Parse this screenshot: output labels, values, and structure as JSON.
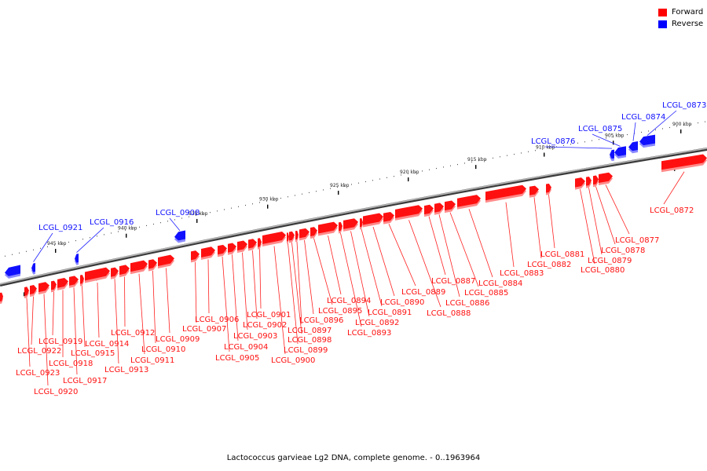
{
  "legend": {
    "forward_label": "Forward",
    "reverse_label": "Reverse",
    "forward_color": "#ff0000",
    "reverse_color": "#0000ff"
  },
  "footer": "Lactococcus garvieae Lg2 DNA, complete genome. - 0..1963964",
  "axis_ticks": [
    "945 kbp",
    "940 kbp",
    "935 kbp",
    "930 kbp",
    "925 kbp",
    "920 kbp",
    "915 kbp",
    "910 kbp",
    "905 kbp",
    "900 kbp"
  ],
  "genes": [
    {
      "name": "LCGL_0873",
      "strand": "reverse"
    },
    {
      "name": "LCGL_0874",
      "strand": "reverse"
    },
    {
      "name": "LCGL_0875",
      "strand": "reverse"
    },
    {
      "name": "LCGL_0876",
      "strand": "reverse"
    },
    {
      "name": "LCGL_0908",
      "strand": "reverse"
    },
    {
      "name": "LCGL_0916",
      "strand": "reverse"
    },
    {
      "name": "LCGL_0921",
      "strand": "reverse"
    },
    {
      "name": "LCGL_0872",
      "strand": "forward"
    },
    {
      "name": "LCGL_0877",
      "strand": "forward"
    },
    {
      "name": "LCGL_0878",
      "strand": "forward"
    },
    {
      "name": "LCGL_0879",
      "strand": "forward"
    },
    {
      "name": "LCGL_0880",
      "strand": "forward"
    },
    {
      "name": "LCGL_0881",
      "strand": "forward"
    },
    {
      "name": "LCGL_0882",
      "strand": "forward"
    },
    {
      "name": "LCGL_0883",
      "strand": "forward"
    },
    {
      "name": "LCGL_0884",
      "strand": "forward"
    },
    {
      "name": "LCGL_0885",
      "strand": "forward"
    },
    {
      "name": "LCGL_0886",
      "strand": "forward"
    },
    {
      "name": "LCGL_0887",
      "strand": "forward"
    },
    {
      "name": "LCGL_0888",
      "strand": "forward"
    },
    {
      "name": "LCGL_0889",
      "strand": "forward"
    },
    {
      "name": "LCGL_0890",
      "strand": "forward"
    },
    {
      "name": "LCGL_0891",
      "strand": "forward"
    },
    {
      "name": "LCGL_0892",
      "strand": "forward"
    },
    {
      "name": "LCGL_0893",
      "strand": "forward"
    },
    {
      "name": "LCGL_0894",
      "strand": "forward"
    },
    {
      "name": "LCGL_0895",
      "strand": "forward"
    },
    {
      "name": "LCGL_0896",
      "strand": "forward"
    },
    {
      "name": "LCGL_0897",
      "strand": "forward"
    },
    {
      "name": "LCGL_0898",
      "strand": "forward"
    },
    {
      "name": "LCGL_0899",
      "strand": "forward"
    },
    {
      "name": "LCGL_0900",
      "strand": "forward"
    },
    {
      "name": "LCGL_0901",
      "strand": "forward"
    },
    {
      "name": "LCGL_0902",
      "strand": "forward"
    },
    {
      "name": "LCGL_0903",
      "strand": "forward"
    },
    {
      "name": "LCGL_0904",
      "strand": "forward"
    },
    {
      "name": "LCGL_0905",
      "strand": "forward"
    },
    {
      "name": "LCGL_0906",
      "strand": "forward"
    },
    {
      "name": "LCGL_0907",
      "strand": "forward"
    },
    {
      "name": "LCGL_0909",
      "strand": "forward"
    },
    {
      "name": "LCGL_0910",
      "strand": "forward"
    },
    {
      "name": "LCGL_0911",
      "strand": "forward"
    },
    {
      "name": "LCGL_0912",
      "strand": "forward"
    },
    {
      "name": "LCGL_0913",
      "strand": "forward"
    },
    {
      "name": "LCGL_0914",
      "strand": "forward"
    },
    {
      "name": "LCGL_0915",
      "strand": "forward"
    },
    {
      "name": "LCGL_0917",
      "strand": "forward"
    },
    {
      "name": "LCGL_0918",
      "strand": "forward"
    },
    {
      "name": "LCGL_0919",
      "strand": "forward"
    },
    {
      "name": "LCGL_0920",
      "strand": "forward"
    },
    {
      "name": "LCGL_0922",
      "strand": "forward"
    },
    {
      "name": "LCGL_0923",
      "strand": "forward"
    }
  ]
}
